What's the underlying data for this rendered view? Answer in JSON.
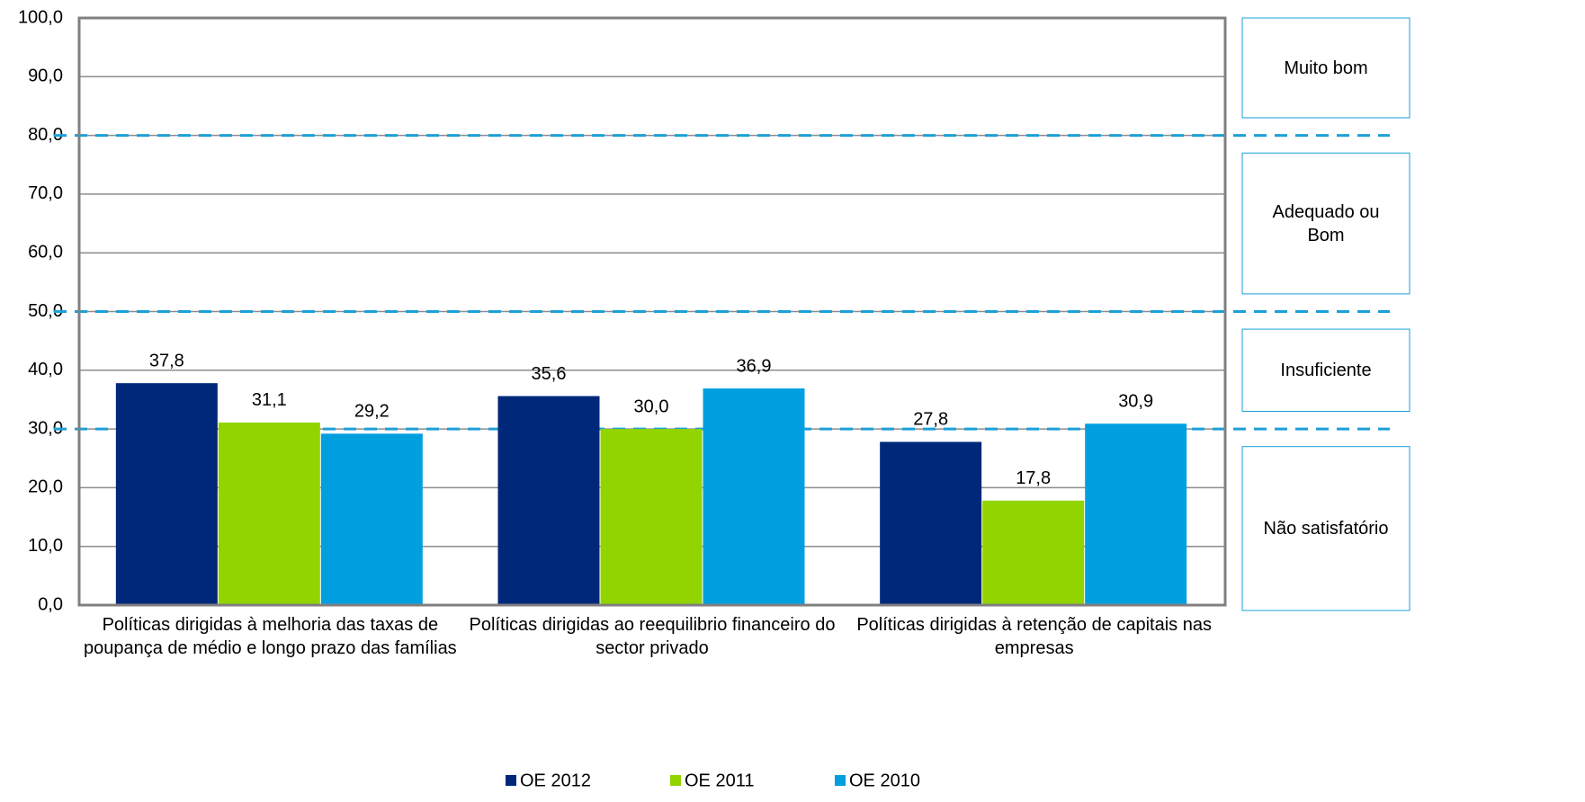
{
  "chart_data": {
    "type": "bar",
    "categories": [
      "Políticas dirigidas à melhoria das taxas de poupança de médio e longo prazo das famílias",
      "Políticas dirigidas ao reequilibrio financeiro do sector privado",
      "Políticas dirigidas à retenção de capitais nas empresas"
    ],
    "series": [
      {
        "name": "OE 2012",
        "color": "#00287a",
        "values": [
          37.8,
          35.6,
          27.8
        ],
        "value_labels": [
          "37,8",
          "35,6",
          "27,8"
        ]
      },
      {
        "name": "OE 2011",
        "color": "#92d400",
        "values": [
          31.1,
          30.0,
          17.8
        ],
        "value_labels": [
          "31,1",
          "30,0",
          "17,8"
        ]
      },
      {
        "name": "OE 2010",
        "color": "#00a0e0",
        "values": [
          29.2,
          36.9,
          30.9
        ],
        "value_labels": [
          "29,2",
          "36,9",
          "30,9"
        ]
      }
    ],
    "ylim": [
      0,
      100
    ],
    "yticks": [
      {
        "value": 0,
        "label": "0,0"
      },
      {
        "value": 10,
        "label": "10,0"
      },
      {
        "value": 20,
        "label": "20,0"
      },
      {
        "value": 30,
        "label": "30,0"
      },
      {
        "value": 40,
        "label": "40,0"
      },
      {
        "value": 50,
        "label": "50,0"
      },
      {
        "value": 60,
        "label": "60,0"
      },
      {
        "value": 70,
        "label": "70,0"
      },
      {
        "value": 80,
        "label": "80,0"
      },
      {
        "value": 90,
        "label": "90,0"
      },
      {
        "value": 100,
        "label": "100,0"
      }
    ],
    "grid": true,
    "thresholds": [
      30,
      50,
      80
    ],
    "threshold_color": "#1ba0d8",
    "bands": [
      "Não satisfatório",
      "Insuficiente",
      "Adequado ou Bom",
      "Muito bom"
    ],
    "legend": "bottom"
  }
}
